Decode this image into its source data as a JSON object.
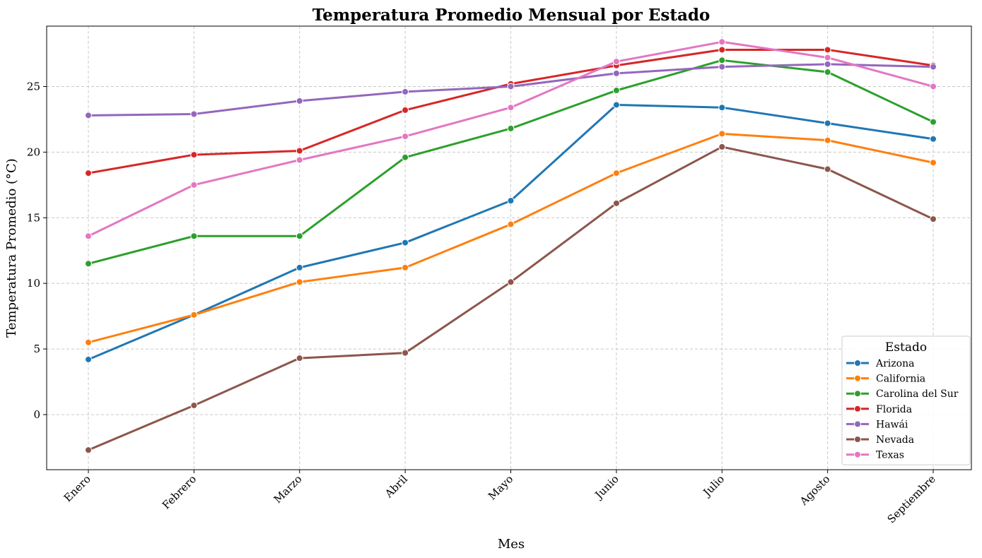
{
  "chart_data": {
    "type": "line",
    "title": "Temperatura Promedio Mensual por Estado",
    "xlabel": "Mes",
    "ylabel": "Temperatura Promedio (°C)",
    "categories": [
      "Enero",
      "Febrero",
      "Marzo",
      "Abril",
      "Mayo",
      "Junio",
      "Julio",
      "Agosto",
      "Septiembre"
    ],
    "ylim": [
      -4.2,
      29.6
    ],
    "yticks": [
      0,
      5,
      10,
      15,
      20,
      25
    ],
    "grid": true,
    "legend": {
      "title": "Estado",
      "position": "lower-right"
    },
    "series": [
      {
        "name": "Arizona",
        "color": "#1f77b4",
        "values": [
          4.2,
          7.6,
          11.2,
          13.1,
          16.3,
          23.6,
          23.4,
          22.2,
          21.0
        ]
      },
      {
        "name": "California",
        "color": "#ff7f0e",
        "values": [
          5.5,
          7.6,
          10.1,
          11.2,
          14.5,
          18.4,
          21.4,
          20.9,
          19.2
        ]
      },
      {
        "name": "Carolina del Sur",
        "color": "#2ca02c",
        "values": [
          11.5,
          13.6,
          13.6,
          19.6,
          21.8,
          24.7,
          27.0,
          26.1,
          22.3
        ]
      },
      {
        "name": "Florida",
        "color": "#d62728",
        "values": [
          18.4,
          19.8,
          20.1,
          23.2,
          25.2,
          26.6,
          27.8,
          27.8,
          26.6
        ]
      },
      {
        "name": "Hawái",
        "color": "#9467bd",
        "values": [
          22.8,
          22.9,
          23.9,
          24.6,
          25.0,
          26.0,
          26.5,
          26.7,
          26.5
        ]
      },
      {
        "name": "Nevada",
        "color": "#8c564b",
        "values": [
          -2.7,
          0.7,
          4.3,
          4.7,
          10.1,
          16.1,
          20.4,
          18.7,
          14.9
        ]
      },
      {
        "name": "Texas",
        "color": "#e377c2",
        "values": [
          13.6,
          17.5,
          19.4,
          21.2,
          23.4,
          26.9,
          28.4,
          27.2,
          25.0
        ]
      }
    ]
  }
}
